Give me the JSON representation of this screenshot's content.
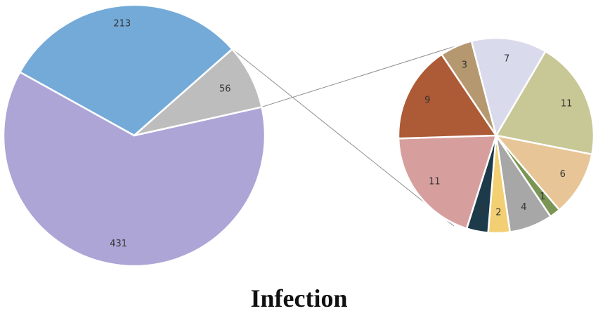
{
  "chart_data": {
    "type": "pie",
    "title": "Infection",
    "main_pie": {
      "slices": [
        {
          "value": 431,
          "label": "431",
          "color": "#ada5d6"
        },
        {
          "value": 213,
          "label": "213",
          "color": "#74aad8"
        },
        {
          "value": 56,
          "label": "56",
          "color": "#bdbdbd"
        }
      ]
    },
    "sub_pie": {
      "source_slice": "56",
      "slices": [
        {
          "value": 11,
          "label": "11",
          "color": "#c8c796"
        },
        {
          "value": 6,
          "label": "6",
          "color": "#e7c597"
        },
        {
          "value": 1,
          "label": "1",
          "color": "#7a9554"
        },
        {
          "value": 4,
          "label": "4",
          "color": "#a7a7a7"
        },
        {
          "value": 2,
          "label": "2",
          "color": "#f3cf73"
        },
        {
          "value": 2,
          "label": "2",
          "color": "#1d3a4b"
        },
        {
          "value": 11,
          "label": "11",
          "color": "#d69f9d"
        },
        {
          "value": 9,
          "label": "9",
          "color": "#ad5a36"
        },
        {
          "value": 3,
          "label": "3",
          "color": "#b59870"
        },
        {
          "value": 7,
          "label": "7",
          "color": "#d9daeb"
        }
      ]
    },
    "grid": false,
    "legend": "none"
  }
}
